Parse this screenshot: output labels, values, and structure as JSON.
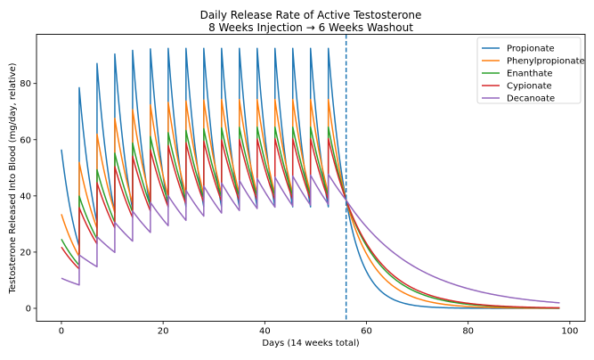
{
  "chart_data": {
    "type": "line",
    "title": "Daily Release Rate of Active Testosterone",
    "subtitle": "8 Weeks Injection → 6 Weeks Washout",
    "xlabel": "Days (14 weeks total)",
    "ylabel": "Testosterone Released Into Blood (mg/day, relative)",
    "xlim": [
      -4.9,
      103
    ],
    "ylim": [
      -4.6,
      97.5
    ],
    "xticks": [
      0,
      20,
      40,
      60,
      80,
      100
    ],
    "yticks": [
      0,
      20,
      40,
      60,
      80
    ],
    "grid": false,
    "legend": "top-right",
    "vline": {
      "x": 56,
      "style": "dashed",
      "color": "#1f77b4"
    },
    "injection_days": [
      0,
      3.5,
      7,
      10.5,
      14,
      17.5,
      21,
      24.5,
      28,
      31.5,
      35,
      38.5,
      42,
      45.5,
      49,
      52.5
    ],
    "series": [
      {
        "name": "Propionate",
        "color": "#1f77b4",
        "peaks": [
          56.5,
          78.5,
          87.1,
          90.5,
          91.8,
          92.3,
          92.5,
          92.5,
          92.5,
          92.5,
          92.5,
          92.5,
          92.5,
          92.5,
          92.5,
          92.5
        ],
        "troughs": [
          22.0,
          30.6,
          34.0,
          35.3,
          35.8,
          36.0,
          36.1,
          36.1,
          36.1,
          36.1,
          36.1,
          36.1,
          36.1,
          36.1,
          36.1,
          38.5
        ],
        "washout": {
          "x": [
            56,
            63,
            70,
            77,
            84,
            91,
            98
          ],
          "y": [
            38.5,
            5.85,
            0.89,
            0.14,
            0.02,
            0.003,
            0.0005
          ]
        }
      },
      {
        "name": "Phenylpropionate",
        "color": "#ff7f0e",
        "peaks": [
          33.5,
          51.9,
          62.0,
          67.6,
          70.7,
          72.4,
          73.3,
          73.8,
          74.1,
          74.3,
          74.3,
          74.3,
          74.3,
          74.3,
          74.3,
          74.3
        ],
        "troughs": [
          18.4,
          28.5,
          34.1,
          37.2,
          38.9,
          39.8,
          40.3,
          40.6,
          40.7,
          40.8,
          40.8,
          40.8,
          40.8,
          40.8,
          40.8,
          38.5
        ],
        "washout": {
          "x": [
            56,
            63,
            70,
            77,
            84,
            91,
            98
          ],
          "y": [
            38.5,
            11.6,
            3.51,
            1.06,
            0.32,
            0.097,
            0.029
          ]
        }
      },
      {
        "name": "Enanthate",
        "color": "#2ca02c",
        "peaks": [
          24.6,
          39.9,
          49.3,
          55.2,
          58.8,
          61.1,
          62.5,
          63.3,
          63.9,
          64.2,
          64.4,
          64.5,
          64.5,
          64.5,
          64.5,
          64.5
        ],
        "troughs": [
          15.3,
          24.7,
          30.6,
          34.2,
          36.5,
          37.9,
          38.7,
          39.3,
          39.6,
          39.8,
          39.9,
          40.0,
          40.0,
          40.0,
          40.0,
          38.5
        ],
        "washout": {
          "x": [
            56,
            63,
            70,
            77,
            84,
            91,
            98
          ],
          "y": [
            38.5,
            14.8,
            5.66,
            2.17,
            0.83,
            0.32,
            0.12
          ]
        }
      },
      {
        "name": "Cypionate",
        "color": "#d62728",
        "peaks": [
          21.8,
          35.8,
          44.7,
          50.4,
          54.1,
          56.4,
          57.9,
          58.9,
          59.5,
          59.9,
          60.1,
          60.3,
          60.4,
          60.4,
          60.4,
          60.4
        ],
        "troughs": [
          14.0,
          22.9,
          28.6,
          32.3,
          34.6,
          36.1,
          37.1,
          37.7,
          38.1,
          38.3,
          38.5,
          38.6,
          38.7,
          38.7,
          38.7,
          38.5
        ],
        "washout": {
          "x": [
            56,
            63,
            70,
            77,
            84,
            91,
            98
          ],
          "y": [
            38.5,
            15.7,
            6.41,
            2.62,
            1.07,
            0.44,
            0.18
          ]
        }
      },
      {
        "name": "Decanoate",
        "color": "#9467bd",
        "peaks": [
          10.7,
          19.0,
          25.5,
          30.6,
          34.6,
          37.7,
          40.1,
          42.0,
          43.5,
          44.6,
          45.5,
          46.2,
          46.7,
          47.1,
          47.4,
          47.7
        ],
        "troughs": [
          8.3,
          14.8,
          19.9,
          23.9,
          27.0,
          29.4,
          31.3,
          32.8,
          33.9,
          34.8,
          35.5,
          36.0,
          36.4,
          36.7,
          37.0,
          38.5
        ],
        "washout": {
          "x": [
            56,
            63,
            70,
            77,
            84,
            91,
            98
          ],
          "y": [
            38.5,
            23.4,
            14.2,
            8.65,
            5.26,
            3.2,
            1.95
          ]
        }
      }
    ]
  }
}
